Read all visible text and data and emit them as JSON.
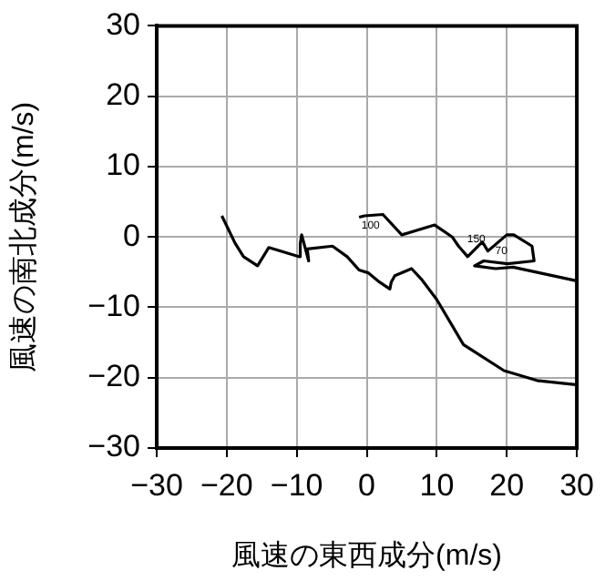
{
  "chart_data": {
    "type": "line",
    "xlabel": "風速の東西成分(m/s)",
    "ylabel": "風速の南北成分(m/s)",
    "xlim": [
      -30,
      30
    ],
    "ylim": [
      -30,
      30
    ],
    "xticks": [
      {
        "value": -30,
        "label": "−30"
      },
      {
        "value": -20,
        "label": "−20"
      },
      {
        "value": -10,
        "label": "−10"
      },
      0,
      10,
      20,
      30
    ],
    "yticks": [
      {
        "value": -30,
        "label": "−30"
      },
      {
        "value": -20,
        "label": "−20"
      },
      {
        "value": -10,
        "label": "−10"
      },
      0,
      10,
      20,
      30
    ],
    "grid": true,
    "legend": false,
    "marker": "none",
    "line_style": "solid",
    "series": [
      {
        "color": "#000000",
        "x": [
          -20.7,
          -18.8,
          -17.6,
          -15.6,
          -14.0,
          -9.7,
          -9.5,
          -9.3,
          -8.3,
          -8.5,
          -4.9,
          -2.8,
          -1.1,
          0.2,
          1.8,
          3.3,
          3.5,
          4.0,
          6.4,
          7.8,
          10.0,
          13.8,
          19.6,
          24.3,
          29.8
        ],
        "values": [
          3.0,
          -0.9,
          -2.8,
          -4.1,
          -1.5,
          -2.8,
          -0.9,
          0.3,
          -3.4,
          -1.7,
          -1.3,
          -2.8,
          -4.7,
          -5.1,
          -6.4,
          -7.4,
          -6.4,
          -5.5,
          -4.5,
          -6.0,
          -8.9,
          -15.3,
          -19.0,
          -20.4,
          -21.0
        ]
      },
      {
        "color": "#000000",
        "x": [
          -1.1,
          -0.3,
          2.3,
          5.0,
          9.7,
          12.2,
          13.1,
          14.4,
          16.5,
          17.3,
          20.0,
          21.0,
          23.6,
          23.9,
          20.1,
          16.7,
          15.4,
          18.4,
          20.9,
          29.8
        ],
        "values": [
          2.8,
          3.0,
          3.2,
          0.3,
          1.7,
          0.0,
          -1.3,
          -2.8,
          -0.7,
          -2.0,
          0.3,
          0.3,
          -1.3,
          -3.4,
          -3.8,
          -3.4,
          -4.1,
          -4.5,
          -4.3,
          -6.2
        ]
      }
    ],
    "annotations": [
      {
        "text": "100",
        "x": -1.8,
        "y": 1.6
      },
      {
        "text": "150",
        "x": 13.3,
        "y": -0.3
      },
      {
        "text": "70",
        "x": 17.3,
        "y": -2.0
      }
    ]
  }
}
